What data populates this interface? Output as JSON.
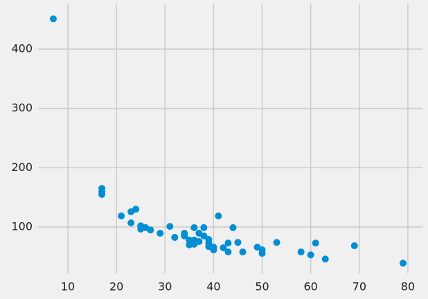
{
  "chart_data": {
    "type": "scatter",
    "color": "#008fd5",
    "grid": true,
    "x": [
      7,
      17,
      17,
      17,
      21,
      23,
      23,
      24,
      25,
      25,
      26,
      27,
      29,
      31,
      32,
      34,
      34,
      35,
      35,
      36,
      36,
      36,
      37,
      37,
      38,
      38,
      39,
      39,
      39,
      40,
      40,
      41,
      42,
      43,
      43,
      44,
      45,
      46,
      49,
      50,
      50,
      53,
      58,
      60,
      61,
      63,
      69,
      79
    ],
    "y": [
      451,
      165,
      159.5,
      155,
      118.7,
      107,
      125.7,
      130,
      102,
      96.5,
      99,
      95,
      89.5,
      101,
      82.5,
      89.5,
      85,
      78,
      70,
      99,
      78,
      71,
      89.5,
      75.5,
      99,
      85,
      79,
      73,
      67,
      66,
      61.5,
      118.7,
      65,
      73,
      58,
      99,
      74,
      58,
      66,
      61.5,
      55.6,
      74,
      58,
      53,
      73,
      46,
      68.5,
      39
    ],
    "xlim": [
      3.87,
      83
    ],
    "ylim": [
      21.8,
      477
    ],
    "xticks": [
      10,
      20,
      30,
      40,
      50,
      60,
      70,
      80
    ],
    "yticks": [
      100,
      200,
      300,
      400
    ]
  }
}
